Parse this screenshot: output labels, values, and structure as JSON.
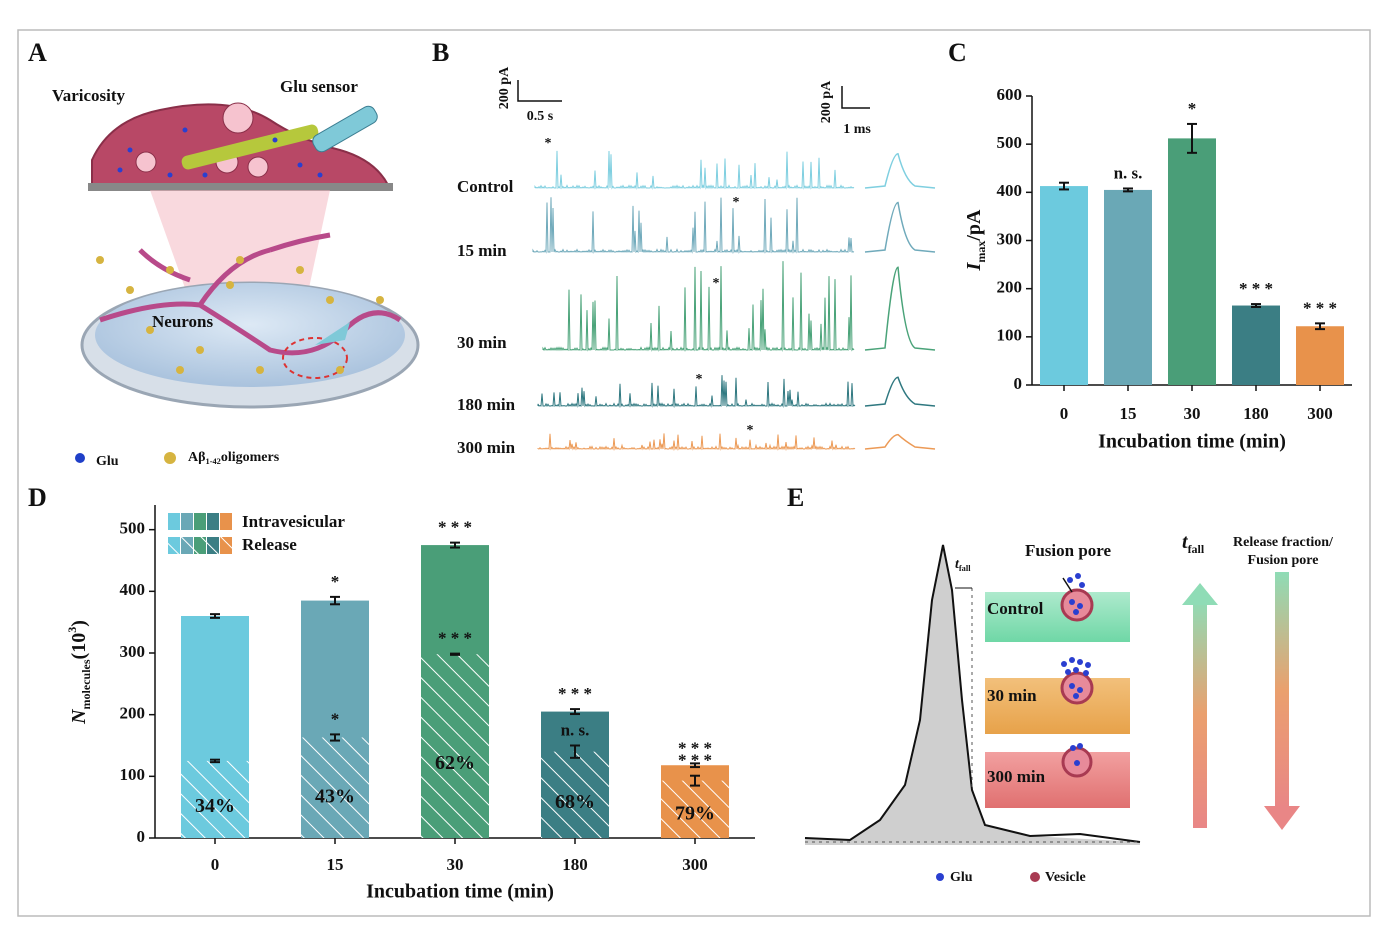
{
  "panels": {
    "A": {
      "label": "A",
      "varicosity": "Varicosity",
      "sensor": "Glu sensor",
      "neurons": "Neurons",
      "legend": {
        "glu": "Glu",
        "abeta": {
          "main": "Aβ",
          "sub": "1-42",
          "rest": "oligomers"
        }
      }
    },
    "B": {
      "label": "B",
      "scale_left": {
        "y": "200 pA",
        "x": "0.5 s"
      },
      "scale_right": {
        "y": "200 pA",
        "x": "1 ms"
      },
      "traces": [
        "Control",
        "15 min",
        "30 min",
        "180 min",
        "300 min"
      ],
      "marker": "*"
    },
    "E": {
      "label": "E",
      "fusion_pore": "Fusion pore",
      "tfall": {
        "main": "t",
        "sub": "fall"
      },
      "conditions": [
        "Control",
        "30 min",
        "300 min"
      ],
      "arrow_label": [
        "Release fraction/",
        "Fusion pore"
      ],
      "legend": {
        "glu": "Glu",
        "vesicle": "Vesicle"
      }
    }
  },
  "chart_data": [
    {
      "type": "bar",
      "panel_label": "C",
      "categories": [
        "0",
        "15",
        "30",
        "180",
        "300"
      ],
      "values": [
        413,
        405,
        512,
        165,
        122
      ],
      "errors": [
        7,
        3,
        30,
        3,
        6
      ],
      "colors": [
        "#6ccade",
        "#6aa8b6",
        "#4a9e78",
        "#3b7e84",
        "#e8924b"
      ],
      "significance": [
        null,
        "n. s.",
        "*",
        "* * *",
        "* * *"
      ],
      "ylim": [
        0,
        600
      ],
      "yticks": [
        0,
        100,
        200,
        300,
        400,
        500,
        600
      ],
      "xlabel": "Incubation time (min)",
      "ylabel": {
        "main": "I",
        "sub": "max",
        "rest": "/pA"
      }
    },
    {
      "type": "overlay_bar",
      "panel_label": "D",
      "categories": [
        "0",
        "15",
        "30",
        "180",
        "300"
      ],
      "colors": [
        "#6ccade",
        "#6aa8b6",
        "#4a9e78",
        "#3b7e84",
        "#e8924b"
      ],
      "series": [
        {
          "name": "Intravesicular",
          "values": [
            360,
            385,
            475,
            205,
            118
          ],
          "errors": [
            3,
            6,
            4,
            4,
            3
          ],
          "significance": [
            null,
            "*",
            "* * *",
            "* * *",
            "* * *"
          ]
        },
        {
          "name": "Release",
          "values": [
            125,
            163,
            298,
            140,
            93
          ],
          "errors": [
            2,
            5,
            1,
            10,
            8
          ],
          "significance": [
            null,
            "*",
            "* * *",
            "n. s.",
            "* * *"
          ],
          "fraction_labels": [
            "34%",
            "43%",
            "62%",
            "68%",
            "79%"
          ]
        }
      ],
      "ylim": [
        0,
        540
      ],
      "yticks": [
        0,
        100,
        200,
        300,
        400,
        500
      ],
      "xlabel": "Incubation time (min)",
      "ylabel": {
        "main": "N",
        "sub": "molecules",
        "rest": "(10",
        "sup": "3",
        "end": ")"
      }
    }
  ]
}
